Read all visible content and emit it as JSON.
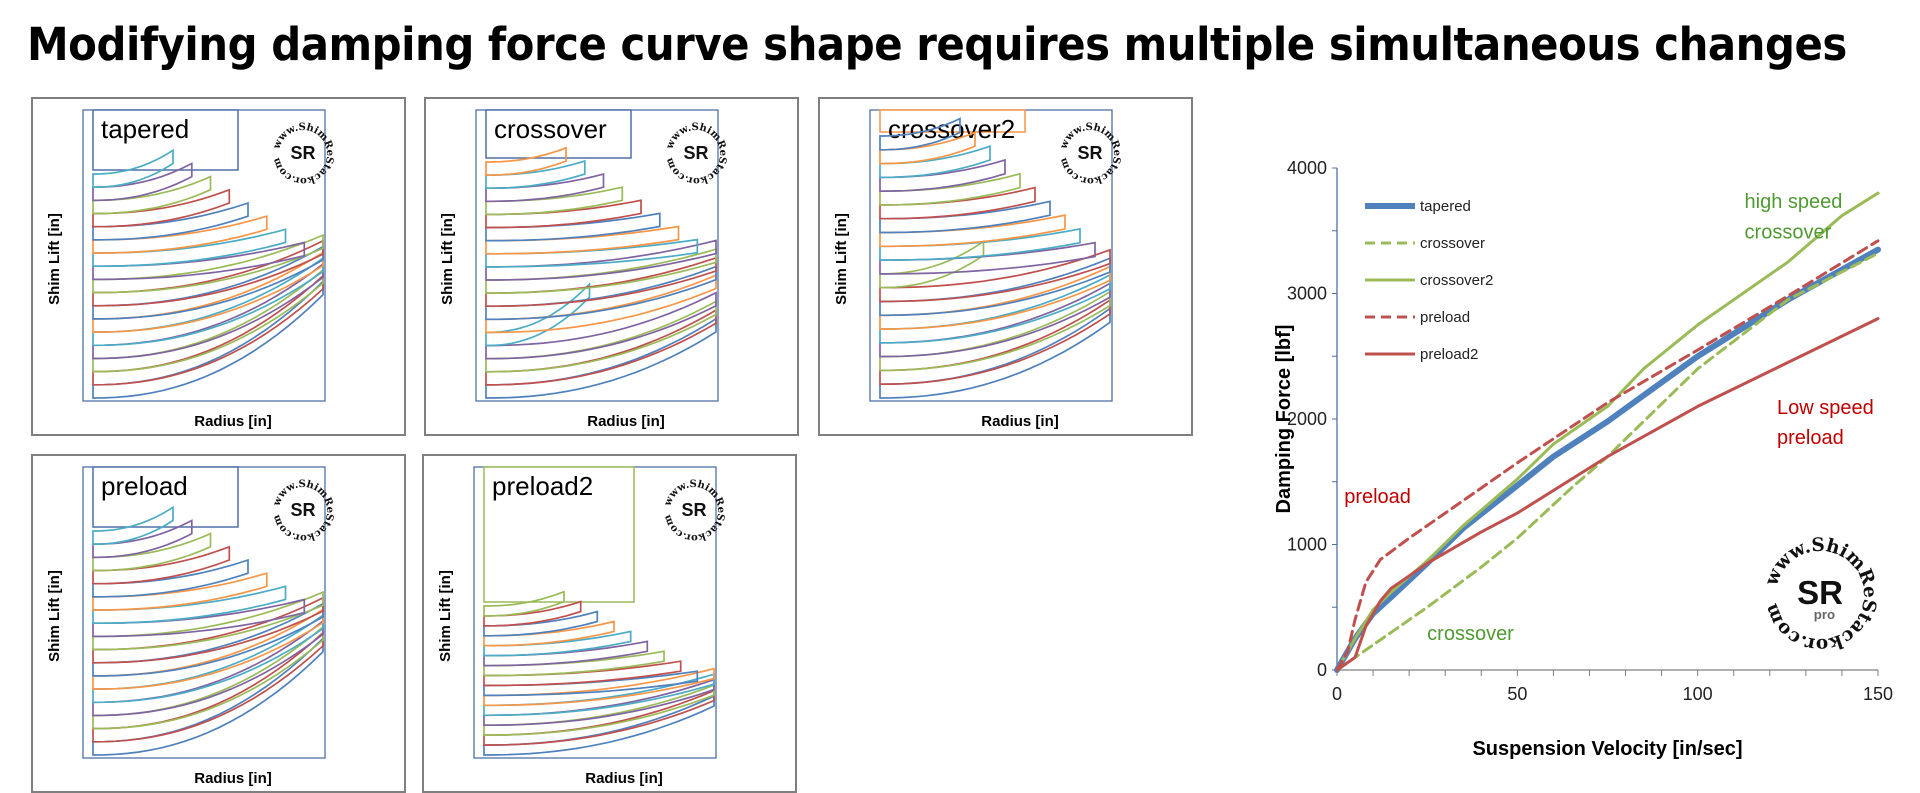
{
  "title": "Modifying damping force curve shape requires multiple simultaneous changes",
  "panels": [
    {
      "name": "tapered",
      "ylabel": "Shim Lift [in]",
      "xlabel": "Radius [in]"
    },
    {
      "name": "crossover",
      "ylabel": "Shim Lift [in]",
      "xlabel": "Radius [in]"
    },
    {
      "name": "crossover2",
      "ylabel": "Shim Lift [in]",
      "xlabel": "Radius [in]"
    },
    {
      "name": "preload",
      "ylabel": "Shim Lift [in]",
      "xlabel": "Radius [in]"
    },
    {
      "name": "preload2",
      "ylabel": "Shim Lift [in]",
      "xlabel": "Radius [in]"
    }
  ],
  "logo": {
    "ring_text": "www.ShimReStackor.com",
    "mark": "SR",
    "sub": "pro"
  },
  "colors": {
    "blue": "#4f81bd",
    "green": "#9bbb59",
    "red": "#c0504d",
    "annot_green": "#4f9a32",
    "annot_red": "#c00000"
  },
  "chart_data": {
    "type": "line",
    "xlabel": "Suspension Velocity [in/sec]",
    "ylabel": "Damping Force [lbf]",
    "xlim": [
      0,
      150
    ],
    "ylim": [
      0,
      4000
    ],
    "xticks": [
      0,
      50,
      100,
      150
    ],
    "yticks": [
      0,
      1000,
      2000,
      3000,
      4000
    ],
    "legend_position": "top-left",
    "series": [
      {
        "name": "tapered",
        "color": "#4f81bd",
        "dash": false,
        "width": 6,
        "x": [
          0,
          5,
          10,
          15,
          25,
          35,
          50,
          60,
          75,
          100,
          125,
          150
        ],
        "y": [
          0,
          250,
          450,
          580,
          850,
          1130,
          1470,
          1700,
          1980,
          2500,
          2950,
          3350
        ]
      },
      {
        "name": "crossover",
        "color": "#9bbb59",
        "dash": true,
        "width": 3,
        "x": [
          0,
          10,
          25,
          40,
          50,
          65,
          75,
          100,
          125,
          150
        ],
        "y": [
          0,
          200,
          500,
          820,
          1050,
          1450,
          1700,
          2400,
          2950,
          3320
        ]
      },
      {
        "name": "crossover2",
        "color": "#9bbb59",
        "dash": false,
        "width": 3,
        "x": [
          0,
          5,
          10,
          15,
          25,
          35,
          50,
          60,
          75,
          85,
          100,
          125,
          140,
          150
        ],
        "y": [
          0,
          250,
          480,
          620,
          870,
          1150,
          1520,
          1800,
          2100,
          2400,
          2750,
          3250,
          3620,
          3800
        ]
      },
      {
        "name": "preload",
        "color": "#c0504d",
        "dash": true,
        "width": 3,
        "x": [
          0,
          3,
          5,
          8,
          12,
          20,
          35,
          50,
          75,
          100,
          125,
          150
        ],
        "y": [
          0,
          150,
          400,
          700,
          880,
          1050,
          1350,
          1650,
          2130,
          2550,
          2980,
          3420
        ]
      },
      {
        "name": "preload2",
        "color": "#c0504d",
        "dash": false,
        "width": 3,
        "x": [
          0,
          5,
          8,
          12,
          15,
          25,
          40,
          50,
          75,
          100,
          125,
          150
        ],
        "y": [
          0,
          100,
          350,
          550,
          650,
          850,
          1100,
          1250,
          1700,
          2100,
          2450,
          2800
        ]
      }
    ],
    "annotations": [
      {
        "text": "high speed",
        "x": 113,
        "y": 3680,
        "color": "#4f9a32"
      },
      {
        "text": "crossover",
        "x": 113,
        "y": 3440,
        "color": "#4f9a32"
      },
      {
        "text": "Low speed",
        "x": 122,
        "y": 2040,
        "color": "#c00000"
      },
      {
        "text": "preload",
        "x": 122,
        "y": 1800,
        "color": "#c00000"
      },
      {
        "text": "preload",
        "x": 2,
        "y": 1330,
        "color": "#c00000"
      },
      {
        "text": "crossover",
        "x": 25,
        "y": 240,
        "color": "#4f9a32"
      }
    ]
  }
}
